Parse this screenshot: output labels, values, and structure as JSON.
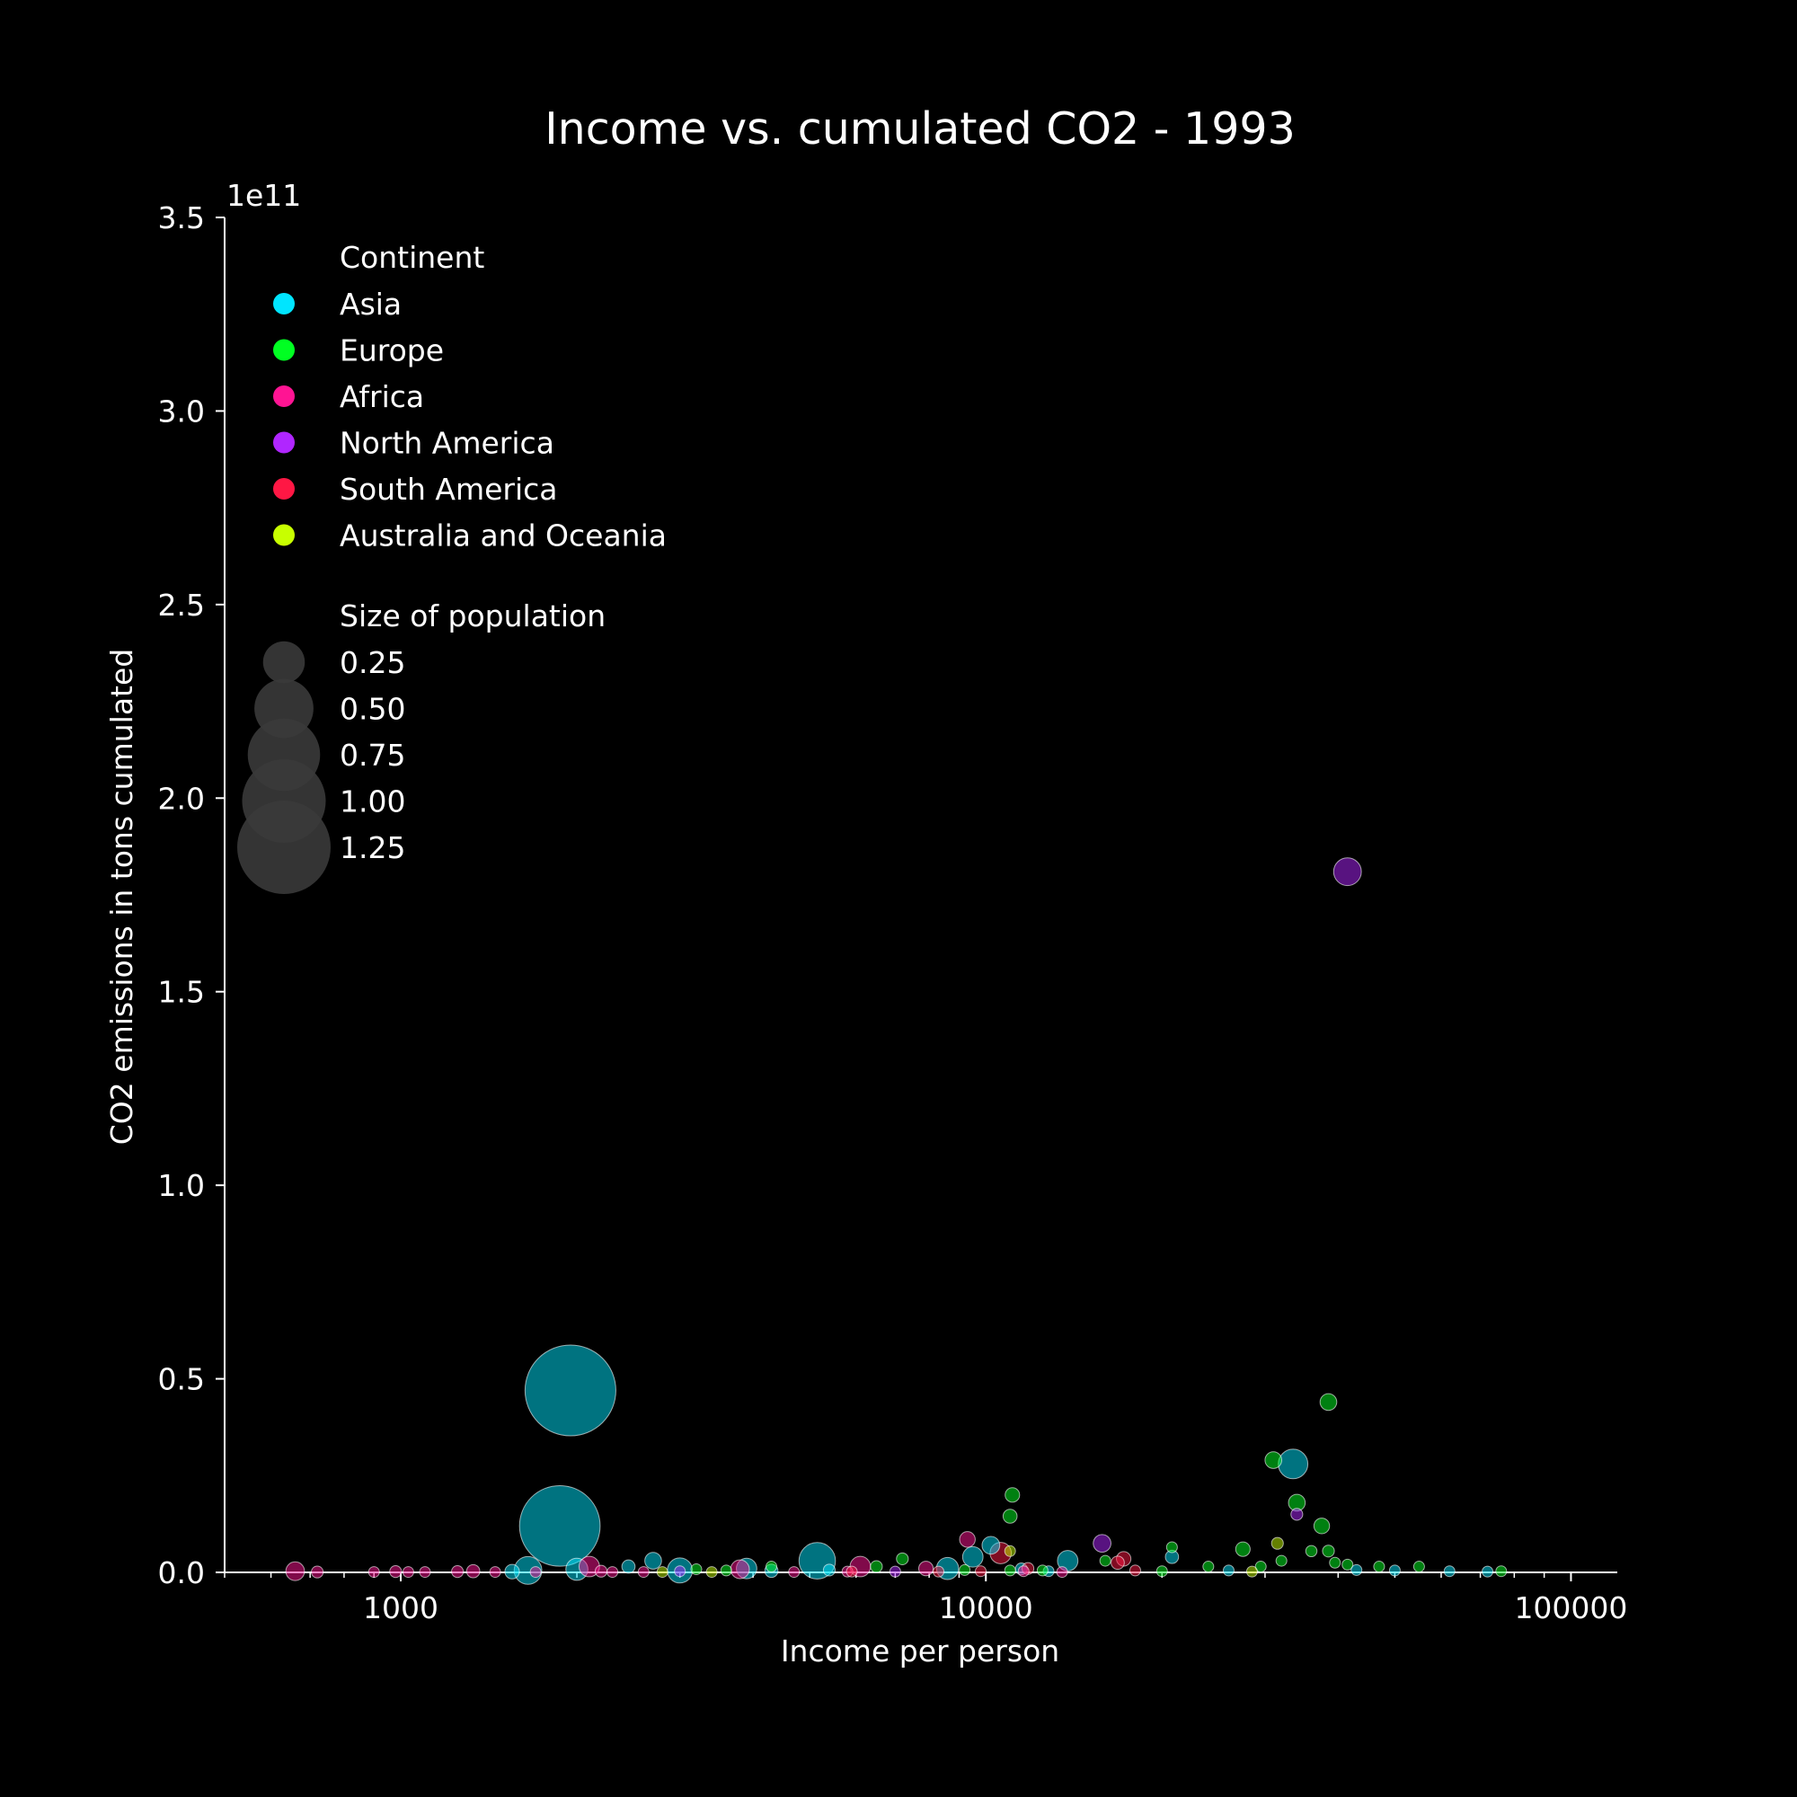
{
  "chart_data": {
    "type": "scatter",
    "title": "Income vs. cumulated CO2 - 1993",
    "xlabel": "Income per person",
    "ylabel": "CO2 emissions in tons cumulated",
    "x_scale": "log",
    "xlim": [
      500,
      120000
    ],
    "ylim": [
      0,
      350000000000
    ],
    "y_offset_label": "1e11",
    "x_tick_labels": [
      "1000",
      "10000",
      "100000"
    ],
    "y_tick_labels": [
      "0.0",
      "0.5",
      "1.0",
      "1.5",
      "2.0",
      "2.5",
      "3.0",
      "3.5"
    ],
    "grid": false,
    "legend": {
      "placement": "top-left",
      "continent_title": "Continent",
      "size_title": "Size of population",
      "size_labels": [
        "0.25",
        "0.50",
        "0.75",
        "1.00",
        "1.25"
      ]
    },
    "series": [
      {
        "name": "Asia",
        "color": "#00e5ff",
        "points": [
          {
            "x": 1950,
            "y": 47000000000,
            "pop": 1.18
          },
          {
            "x": 1870,
            "y": 12000000000,
            "pop": 0.93
          },
          {
            "x": 33500,
            "y": 28000000000,
            "pop": 0.125
          },
          {
            "x": 5150,
            "y": 3000000000,
            "pop": 0.19
          },
          {
            "x": 1650,
            "y": 500000000,
            "pop": 0.11
          },
          {
            "x": 3000,
            "y": 500000000,
            "pop": 0.09
          },
          {
            "x": 2700,
            "y": 3000000000,
            "pop": 0.04
          },
          {
            "x": 3900,
            "y": 1000000000,
            "pop": 0.06
          },
          {
            "x": 9500,
            "y": 4000000000,
            "pop": 0.06
          },
          {
            "x": 10200,
            "y": 7000000000,
            "pop": 0.045
          },
          {
            "x": 13800,
            "y": 3000000000,
            "pop": 0.06
          },
          {
            "x": 8600,
            "y": 1000000000,
            "pop": 0.07
          },
          {
            "x": 20800,
            "y": 4000000000,
            "pop": 0.025
          },
          {
            "x": 2000,
            "y": 800000000,
            "pop": 0.07
          },
          {
            "x": 2450,
            "y": 1500000000,
            "pop": 0.025
          },
          {
            "x": 1550,
            "y": 200000000,
            "pop": 0.03
          },
          {
            "x": 4300,
            "y": 400000000,
            "pop": 0.025
          },
          {
            "x": 5400,
            "y": 600000000,
            "pop": 0.02
          },
          {
            "x": 12800,
            "y": 300000000,
            "pop": 0.015
          },
          {
            "x": 26000,
            "y": 500000000,
            "pop": 0.015
          },
          {
            "x": 43000,
            "y": 600000000,
            "pop": 0.01
          },
          {
            "x": 50000,
            "y": 500000000,
            "pop": 0.01
          },
          {
            "x": 62000,
            "y": 300000000,
            "pop": 0.008
          },
          {
            "x": 72000,
            "y": 200000000,
            "pop": 0.006
          },
          {
            "x": 11500,
            "y": 900000000,
            "pop": 0.02
          }
        ]
      },
      {
        "name": "Europe",
        "color": "#00ff22",
        "points": [
          {
            "x": 38500,
            "y": 44000000000,
            "pop": 0.04
          },
          {
            "x": 31000,
            "y": 29000000000,
            "pop": 0.04
          },
          {
            "x": 34000,
            "y": 18000000000,
            "pop": 0.04
          },
          {
            "x": 11100,
            "y": 20000000000,
            "pop": 0.03
          },
          {
            "x": 11000,
            "y": 14500000000,
            "pop": 0.028
          },
          {
            "x": 37500,
            "y": 12000000000,
            "pop": 0.035
          },
          {
            "x": 27500,
            "y": 6000000000,
            "pop": 0.03
          },
          {
            "x": 36000,
            "y": 5500000000,
            "pop": 0.018
          },
          {
            "x": 38500,
            "y": 5500000000,
            "pop": 0.02
          },
          {
            "x": 7200,
            "y": 3500000000,
            "pop": 0.02
          },
          {
            "x": 20800,
            "y": 6500000000,
            "pop": 0.012
          },
          {
            "x": 16000,
            "y": 3000000000,
            "pop": 0.015
          },
          {
            "x": 32000,
            "y": 3000000000,
            "pop": 0.012
          },
          {
            "x": 39500,
            "y": 2500000000,
            "pop": 0.012
          },
          {
            "x": 41500,
            "y": 2000000000,
            "pop": 0.015
          },
          {
            "x": 47000,
            "y": 1500000000,
            "pop": 0.01
          },
          {
            "x": 24000,
            "y": 1500000000,
            "pop": 0.015
          },
          {
            "x": 29500,
            "y": 1500000000,
            "pop": 0.015
          },
          {
            "x": 55000,
            "y": 1500000000,
            "pop": 0.01
          },
          {
            "x": 6500,
            "y": 1500000000,
            "pop": 0.02
          },
          {
            "x": 11000,
            "y": 500000000,
            "pop": 0.015
          },
          {
            "x": 12500,
            "y": 500000000,
            "pop": 0.012
          },
          {
            "x": 20000,
            "y": 300000000,
            "pop": 0.01
          },
          {
            "x": 4300,
            "y": 1500000000,
            "pop": 0.015
          },
          {
            "x": 3200,
            "y": 800000000,
            "pop": 0.015
          },
          {
            "x": 3600,
            "y": 500000000,
            "pop": 0.01
          },
          {
            "x": 76000,
            "y": 300000000,
            "pop": 0.006
          },
          {
            "x": 9200,
            "y": 600000000,
            "pop": 0.012
          }
        ]
      },
      {
        "name": "Africa",
        "color": "#ff1493",
        "points": [
          {
            "x": 9300,
            "y": 8500000000,
            "pop": 0.035
          },
          {
            "x": 2100,
            "y": 1500000000,
            "pop": 0.06
          },
          {
            "x": 6100,
            "y": 1500000000,
            "pop": 0.06
          },
          {
            "x": 3800,
            "y": 800000000,
            "pop": 0.05
          },
          {
            "x": 7900,
            "y": 1000000000,
            "pop": 0.03
          },
          {
            "x": 660,
            "y": 300000000,
            "pop": 0.05
          },
          {
            "x": 720,
            "y": 100000000,
            "pop": 0.02
          },
          {
            "x": 900,
            "y": 100000000,
            "pop": 0.015
          },
          {
            "x": 980,
            "y": 200000000,
            "pop": 0.02
          },
          {
            "x": 1030,
            "y": 100000000,
            "pop": 0.015
          },
          {
            "x": 1100,
            "y": 100000000,
            "pop": 0.015
          },
          {
            "x": 1250,
            "y": 200000000,
            "pop": 0.02
          },
          {
            "x": 1330,
            "y": 300000000,
            "pop": 0.025
          },
          {
            "x": 1450,
            "y": 100000000,
            "pop": 0.015
          },
          {
            "x": 1700,
            "y": 100000000,
            "pop": 0.015
          },
          {
            "x": 2200,
            "y": 300000000,
            "pop": 0.02
          },
          {
            "x": 2300,
            "y": 100000000,
            "pop": 0.015
          },
          {
            "x": 2600,
            "y": 100000000,
            "pop": 0.01
          },
          {
            "x": 4700,
            "y": 100000000,
            "pop": 0.015
          },
          {
            "x": 5800,
            "y": 200000000,
            "pop": 0.015
          },
          {
            "x": 11600,
            "y": 300000000,
            "pop": 0.015
          },
          {
            "x": 13500,
            "y": 100000000,
            "pop": 0.01
          }
        ]
      },
      {
        "name": "North America",
        "color": "#b026ff",
        "points": [
          {
            "x": 41500,
            "y": 181000000000,
            "pop": 0.11
          },
          {
            "x": 15800,
            "y": 7500000000,
            "pop": 0.045
          },
          {
            "x": 34000,
            "y": 15000000000,
            "pop": 0.02
          },
          {
            "x": 3000,
            "y": 300000000,
            "pop": 0.015
          },
          {
            "x": 7000,
            "y": 200000000,
            "pop": 0.01
          }
        ]
      },
      {
        "name": "South America",
        "color": "#ff1744",
        "points": [
          {
            "x": 10600,
            "y": 5000000000,
            "pop": 0.065
          },
          {
            "x": 17200,
            "y": 3500000000,
            "pop": 0.03
          },
          {
            "x": 16800,
            "y": 2500000000,
            "pop": 0.025
          },
          {
            "x": 11800,
            "y": 1000000000,
            "pop": 0.02
          },
          {
            "x": 9800,
            "y": 300000000,
            "pop": 0.015
          },
          {
            "x": 8300,
            "y": 200000000,
            "pop": 0.012
          },
          {
            "x": 5900,
            "y": 200000000,
            "pop": 0.012
          },
          {
            "x": 18000,
            "y": 500000000,
            "pop": 0.012
          }
        ]
      },
      {
        "name": "Australia and Oceania",
        "color": "#c8ff00",
        "points": [
          {
            "x": 31500,
            "y": 7500000000,
            "pop": 0.02
          },
          {
            "x": 11000,
            "y": 5500000000,
            "pop": 0.015
          },
          {
            "x": 2800,
            "y": 100000000,
            "pop": 0.006
          },
          {
            "x": 3400,
            "y": 100000000,
            "pop": 0.005
          },
          {
            "x": 28500,
            "y": 200000000,
            "pop": 0.005
          }
        ]
      }
    ]
  }
}
